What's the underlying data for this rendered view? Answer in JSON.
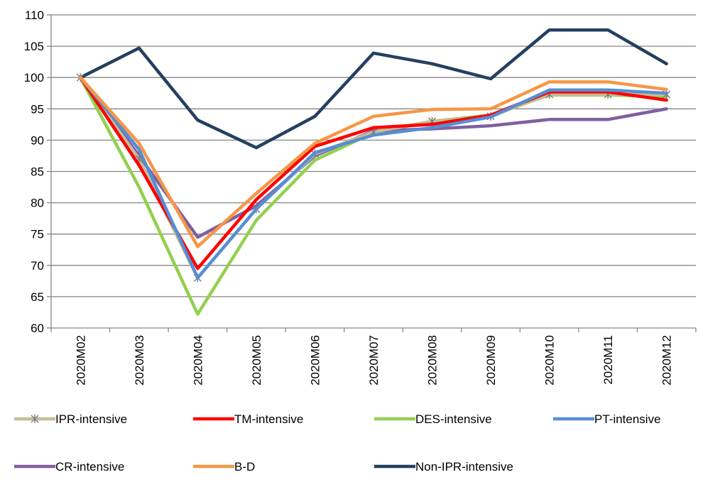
{
  "chart_data": {
    "type": "line",
    "title": "",
    "xlabel": "",
    "ylabel": "",
    "ylim": [
      60,
      110
    ],
    "yticks": [
      60,
      65,
      70,
      75,
      80,
      85,
      90,
      95,
      100,
      105,
      110
    ],
    "grid": true,
    "legend_position": "bottom",
    "categories": [
      "2020M02",
      "2020M03",
      "2020M04",
      "2020M05",
      "2020M06",
      "2020M07",
      "2020M08",
      "2020M09",
      "2020M10",
      "2020M11",
      "2020M12"
    ],
    "series": [
      {
        "name": "Non-IPR-intensive",
        "color": "#243f60",
        "marker": "none",
        "values": [
          100,
          104.7,
          93.2,
          88.8,
          93.8,
          103.9,
          102.2,
          99.8,
          107.6,
          107.6,
          102.2
        ]
      },
      {
        "name": "DES-intensive",
        "color": "#92d050",
        "marker": "none",
        "values": [
          100,
          82.5,
          62.2,
          77.2,
          86.8,
          91.2,
          93.0,
          94.0,
          97.2,
          97.2,
          97.0
        ]
      },
      {
        "name": "CR-intensive",
        "color": "#7f5fa0",
        "marker": "none",
        "values": [
          100,
          87.5,
          74.5,
          79.5,
          87.5,
          91.5,
          91.8,
          92.3,
          93.3,
          93.3,
          95.0
        ]
      },
      {
        "name": "IPR-intensive",
        "color": "#c4bd97",
        "marker": "asterisk",
        "values": [
          100,
          87.0,
          68.0,
          79.0,
          87.8,
          91.3,
          93.0,
          93.8,
          97.3,
          97.3,
          97.3
        ]
      },
      {
        "name": "TM-intensive",
        "color": "#ff0000",
        "marker": "none",
        "values": [
          100,
          86.0,
          69.5,
          80.5,
          89.0,
          92.0,
          92.5,
          94.0,
          97.7,
          97.7,
          96.4
        ]
      },
      {
        "name": "PT-intensive",
        "color": "#558ed5",
        "marker": "none",
        "values": [
          100,
          88.5,
          68.0,
          79.0,
          88.0,
          90.8,
          92.0,
          93.7,
          98.0,
          98.0,
          97.5
        ]
      },
      {
        "name": "B-D",
        "color": "#f79646",
        "marker": "none",
        "values": [
          100,
          89.5,
          73.0,
          81.5,
          89.5,
          93.8,
          94.9,
          95.0,
          99.3,
          99.3,
          98.1
        ]
      }
    ],
    "legend_order": [
      "IPR-intensive",
      "TM-intensive",
      "DES-intensive",
      "PT-intensive",
      "CR-intensive",
      "B-D",
      "Non-IPR-intensive"
    ]
  }
}
